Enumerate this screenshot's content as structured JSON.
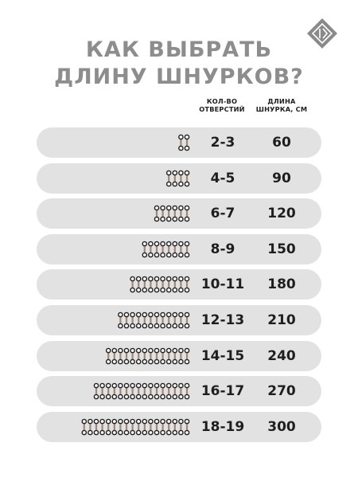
{
  "title": {
    "line1": "КАК ВЫБРАТЬ",
    "line2": "ДЛИНУ ШНУРКОВ?"
  },
  "header": {
    "holes_line1": "КОЛ-ВО",
    "holes_line2": "ОТВЕРСТИЙ",
    "length_line1": "ДЛИНА",
    "length_line2": "ШНУРКА, СМ"
  },
  "rows": [
    {
      "holes": "2-3",
      "length": "60",
      "pairs": 2
    },
    {
      "holes": "4-5",
      "length": "90",
      "pairs": 4
    },
    {
      "holes": "6-7",
      "length": "120",
      "pairs": 6
    },
    {
      "holes": "8-9",
      "length": "150",
      "pairs": 8
    },
    {
      "holes": "10-11",
      "length": "180",
      "pairs": 10
    },
    {
      "holes": "12-13",
      "length": "210",
      "pairs": 12
    },
    {
      "holes": "14-15",
      "length": "240",
      "pairs": 14
    },
    {
      "holes": "16-17",
      "length": "270",
      "pairs": 16
    },
    {
      "holes": "18-19",
      "length": "300",
      "pairs": 18
    }
  ],
  "colors": {
    "title": "#8d8d8d",
    "row_bg": "#e2e2e2",
    "lace": "#a08878",
    "eyelet": "#1e1e1e",
    "text": "#1e1e1e",
    "logo": "#8a8a8a"
  },
  "icons": {
    "logo": "diamond-logo-icon",
    "eyelet": "eyelet-lace-icon"
  }
}
